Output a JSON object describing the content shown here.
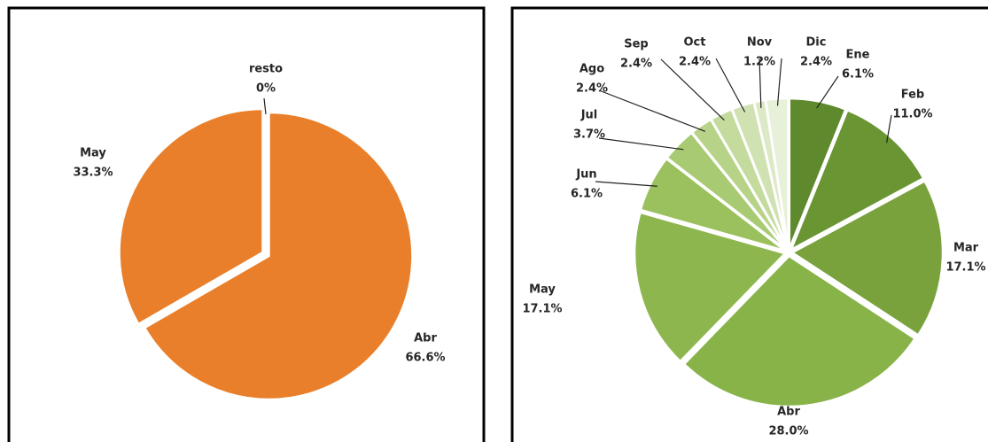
{
  "chart_data": [
    {
      "type": "pie",
      "categories": [
        "Abr",
        "May",
        "resto"
      ],
      "values": [
        66.6,
        33.3,
        0
      ],
      "value_labels": [
        "66.6%",
        "33.3%",
        "0%"
      ],
      "color": "#e97f2a"
    },
    {
      "type": "pie",
      "categories": [
        "Ene",
        "Feb",
        "Mar",
        "Abr",
        "May",
        "Jun",
        "Jul",
        "Ago",
        "Sep",
        "Oct",
        "Nov",
        "Dic"
      ],
      "values": [
        6.1,
        11.0,
        17.1,
        28.0,
        17.1,
        6.1,
        3.7,
        2.4,
        2.4,
        2.4,
        1.2,
        2.4
      ],
      "value_labels": [
        "6.1%",
        "11.0%",
        "17.1%",
        "28.0%",
        "17.1%",
        "6.1%",
        "3.7%",
        "2.4%",
        "2.4%",
        "2.4%",
        "1.2%",
        "2.4%"
      ],
      "colors": [
        "#5e8a2d",
        "#6a9533",
        "#79a23c",
        "#88b349",
        "#8db74e",
        "#9ac15d",
        "#a8ca72",
        "#b7d388",
        "#c4db9d",
        "#d0e2b2",
        "#dce9c6",
        "#e7f0d9"
      ]
    }
  ]
}
